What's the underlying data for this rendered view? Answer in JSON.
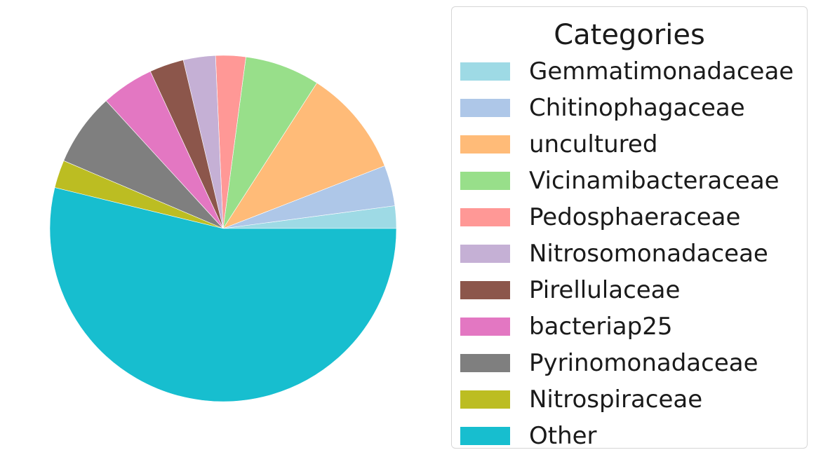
{
  "chart_data": {
    "type": "pie",
    "title": "",
    "legend": {
      "title": "Categories",
      "placement": "right"
    },
    "start_angle_deg": 0,
    "direction": "counterclockwise",
    "slices": [
      {
        "label": "Gemmatimonadaceae",
        "value": 2.1,
        "color": "#9edae5"
      },
      {
        "label": "Chitinophagaceae",
        "value": 3.8,
        "color": "#aec7e8"
      },
      {
        "label": "uncultured",
        "value": 10.0,
        "color": "#ffbb78"
      },
      {
        "label": "Vicinamibacteraceae",
        "value": 7.0,
        "color": "#98df8a"
      },
      {
        "label": "Pedosphaeraceae",
        "value": 2.8,
        "color": "#ff9896"
      },
      {
        "label": "Nitrosomonadaceae",
        "value": 3.0,
        "color": "#c5b0d5"
      },
      {
        "label": "Pirellulaceae",
        "value": 3.2,
        "color": "#8c564b"
      },
      {
        "label": "bacteriap25",
        "value": 4.9,
        "color": "#e377c2"
      },
      {
        "label": "Pyrinomonadaceae",
        "value": 6.8,
        "color": "#7f7f7f"
      },
      {
        "label": "Nitrospiraceae",
        "value": 2.6,
        "color": "#bcbd22"
      },
      {
        "label": "Other",
        "value": 53.8,
        "color": "#17becf"
      }
    ]
  }
}
